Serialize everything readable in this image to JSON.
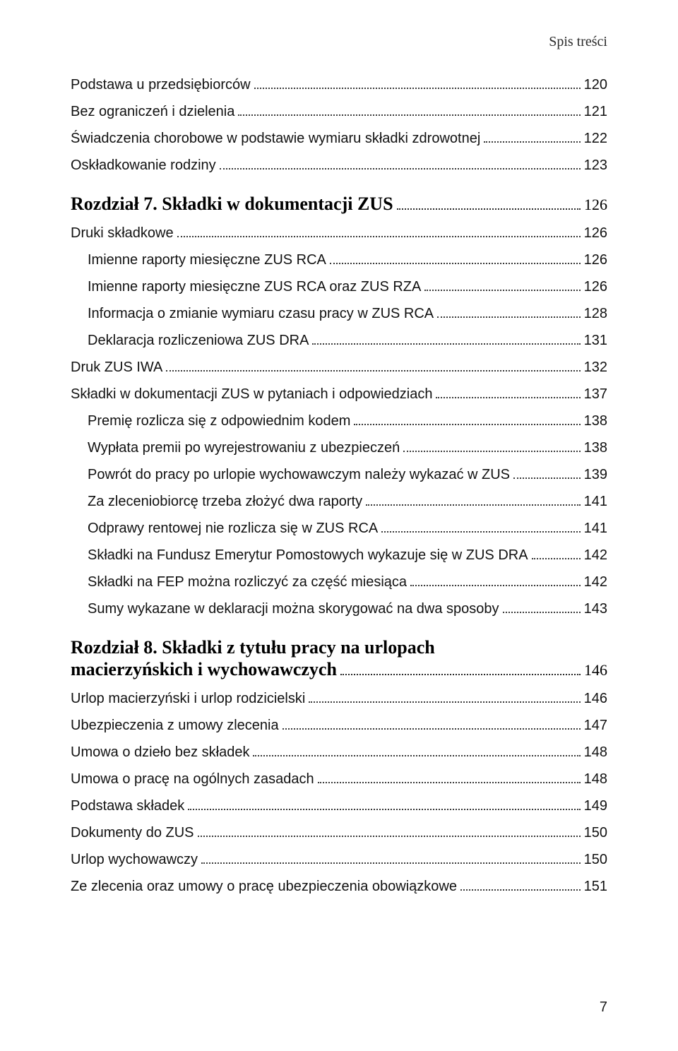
{
  "header": "Spis treści",
  "page_number": "7",
  "entries": [
    {
      "level": "lvl0",
      "label": "Podstawa u przedsiębiorców",
      "page": "120"
    },
    {
      "level": "lvl0",
      "label": "Bez ograniczeń i dzielenia",
      "page": "121"
    },
    {
      "level": "lvl0",
      "label": "Świadczenia chorobowe w podstawie wymiaru składki zdrowotnej",
      "page": "122"
    },
    {
      "level": "lvl0",
      "label": "Oskładkowanie rodziny",
      "page": "123"
    },
    {
      "level": "chapter",
      "label": "Rozdział 7. Składki w dokumentacji ZUS",
      "page": "126"
    },
    {
      "level": "lvl0",
      "label": "Druki składkowe",
      "page": "126"
    },
    {
      "level": "lvl1",
      "label": "Imienne raporty miesięczne ZUS RCA",
      "page": "126"
    },
    {
      "level": "lvl1",
      "label": "Imienne raporty miesięczne ZUS RCA oraz ZUS RZA",
      "page": "126"
    },
    {
      "level": "lvl1",
      "label": "Informacja o zmianie wymiaru czasu pracy w ZUS RCA",
      "page": "128"
    },
    {
      "level": "lvl1",
      "label": "Deklaracja rozliczeniowa ZUS DRA",
      "page": "131"
    },
    {
      "level": "lvl0",
      "label": "Druk ZUS IWA",
      "page": "132"
    },
    {
      "level": "lvl0",
      "label": "Składki w dokumentacji ZUS w pytaniach i odpowiedziach",
      "page": "137"
    },
    {
      "level": "lvl1",
      "label": "Premię rozlicza się z odpowiednim kodem",
      "page": "138"
    },
    {
      "level": "lvl1",
      "label": "Wypłata premii po wyrejestrowaniu z ubezpieczeń",
      "page": "138"
    },
    {
      "level": "lvl1",
      "label": "Powrót do pracy po urlopie wychowawczym należy wykazać w ZUS",
      "page": "139"
    },
    {
      "level": "lvl1",
      "label": "Za zleceniobiorcę trzeba złożyć dwa raporty",
      "page": "141"
    },
    {
      "level": "lvl1",
      "label": "Odprawy rentowej nie rozlicza się w ZUS RCA",
      "page": "141"
    },
    {
      "level": "lvl1",
      "label": "Składki na Fundusz Emerytur Pomostowych wykazuje się w ZUS DRA",
      "page": "142"
    },
    {
      "level": "lvl1",
      "label": "Składki na FEP można rozliczyć za część miesiąca",
      "page": "142"
    },
    {
      "level": "lvl1",
      "label": "Sumy wykazane w deklaracji można skorygować na dwa sposoby",
      "page": "143"
    },
    {
      "level": "chapter",
      "label": "Rozdział 8. Składki z tytułu pracy na urlopach macierzyńskich i wychowawczych",
      "page": "146"
    },
    {
      "level": "lvl0",
      "label": "Urlop macierzyński i urlop rodzicielski",
      "page": "146"
    },
    {
      "level": "lvl0",
      "label": "Ubezpieczenia z umowy zlecenia",
      "page": "147"
    },
    {
      "level": "lvl0",
      "label": "Umowa o dzieło bez składek",
      "page": "148"
    },
    {
      "level": "lvl0",
      "label": "Umowa o pracę na ogólnych zasadach",
      "page": "148"
    },
    {
      "level": "lvl0",
      "label": "Podstawa składek",
      "page": "149"
    },
    {
      "level": "lvl0",
      "label": "Dokumenty do ZUS",
      "page": "150"
    },
    {
      "level": "lvl0",
      "label": "Urlop wychowawczy",
      "page": "150"
    },
    {
      "level": "lvl0",
      "label": "Ze zlecenia oraz umowy o pracę ubezpieczenia obowiązkowe",
      "page": "151"
    }
  ]
}
